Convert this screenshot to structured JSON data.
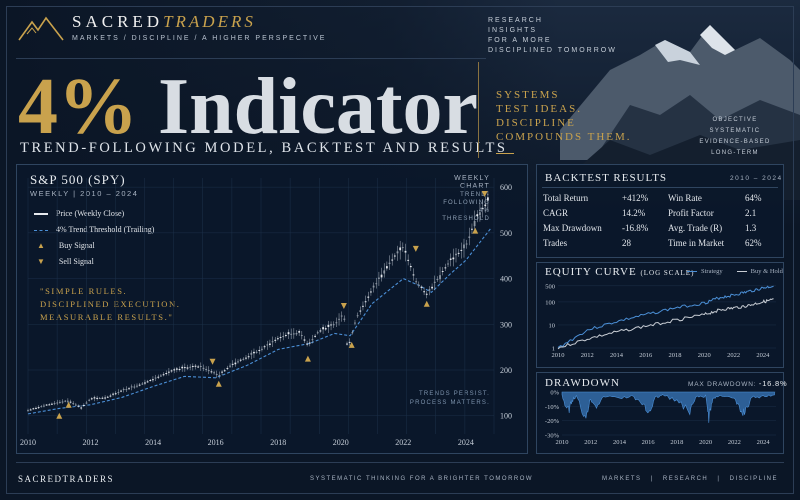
{
  "brand": {
    "name_a": "SACRED",
    "name_b": "TRADERS",
    "tagline": "MARKETS  /  DISCIPLINE  /  A HIGHER PERSPECTIVE"
  },
  "research": [
    "RESEARCH",
    "INSIGHTS",
    "FOR A MORE",
    "DISCIPLINED TOMORROW"
  ],
  "hero": {
    "pct": "4%",
    "word": "Indicator",
    "subtitle": "TREND-FOLLOWING MODEL, BACKTEST AND RESULTS"
  },
  "systems": [
    "SYSTEMS",
    "TEST IDEAS.",
    "DISCIPLINE",
    "COMPOUNDS THEM."
  ],
  "objective": [
    "OBJECTIVE",
    "SYSTEMATIC",
    "EVIDENCE-BASED",
    "LONG-TERM"
  ],
  "main_panel": {
    "title": "S&P 500 (SPY)",
    "subtitle": "WEEKLY  |  2010 – 2024",
    "legend": [
      "Price (Weekly Close)",
      "4% Trend Threshold (Trailing)",
      "Buy Signal",
      "Sell Signal"
    ],
    "quote": [
      "\"SIMPLE RULES.",
      "DISCIPLINED EXECUTION.",
      "MEASURABLE RESULTS.\""
    ],
    "chart_note": [
      "WEEKLY CHART",
      "TREND-FOLLOWING",
      "4% THRESHOLD"
    ],
    "footnote": [
      "TRENDS PERSIST.",
      "PROCESS MATTERS."
    ]
  },
  "backtest": {
    "title": "BACKTEST RESULTS",
    "range": "2010 – 2024",
    "left": [
      [
        "Total Return",
        "+412%"
      ],
      [
        "CAGR",
        "14.2%"
      ],
      [
        "Max Drawdown",
        "-16.8%"
      ],
      [
        "Trades",
        "28"
      ]
    ],
    "right": [
      [
        "Win Rate",
        "64%"
      ],
      [
        "Profit Factor",
        "2.1"
      ],
      [
        "Avg. Trade (R)",
        "1.3"
      ],
      [
        "Time in Market",
        "62%"
      ]
    ]
  },
  "equity": {
    "title": "EQUITY CURVE",
    "sub": "(LOG SCALE)",
    "legend": [
      "Strategy",
      "Buy & Hold"
    ]
  },
  "drawdown": {
    "title": "DRAWDOWN",
    "max_label": "MAX DRAWDOWN:",
    "max_value": "-16.8%"
  },
  "footer": {
    "brand": "SACREDTRADERS",
    "tagline": "SYSTEMATIC THINKING FOR A BRIGHTER TOMORROW",
    "nav": [
      "MARKETS",
      "|",
      "RESEARCH",
      "|",
      "DISCIPLINE"
    ]
  },
  "colors": {
    "gold": "#c9a24d",
    "blue": "#4b8fd6",
    "price": "#e6e9ee",
    "bg": "#0b1626"
  },
  "chart_data": [
    {
      "type": "line",
      "title": "S&P 500 (SPY)",
      "series": [
        {
          "name": "Price (Weekly Close)",
          "x": [
            2010,
            2010.5,
            2011,
            2011.3,
            2011.7,
            2012,
            2012.5,
            2013,
            2013.5,
            2014,
            2014.5,
            2015,
            2015.5,
            2015.9,
            2016.1,
            2016.5,
            2017,
            2017.5,
            2018,
            2018.3,
            2018.7,
            2018.95,
            2019.3,
            2019.8,
            2020.1,
            2020.22,
            2020.5,
            2021,
            2021.5,
            2022,
            2022.4,
            2022.75,
            2023,
            2023.5,
            2024,
            2024.3,
            2024.6,
            2024.8
          ],
          "values": [
            112,
            122,
            130,
            133,
            118,
            137,
            140,
            155,
            166,
            180,
            196,
            205,
            208,
            196,
            188,
            212,
            228,
            247,
            270,
            278,
            282,
            255,
            285,
            300,
            322,
            245,
            315,
            375,
            430,
            470,
            395,
            365,
            390,
            440,
            470,
            530,
            560,
            580
          ]
        },
        {
          "name": "4% Trend Threshold (Trailing)",
          "x": [
            2010,
            2011,
            2012,
            2013,
            2014,
            2015,
            2016,
            2017,
            2018,
            2019,
            2019.8,
            2020.3,
            2021,
            2022,
            2022.5,
            2022.9,
            2023.5,
            2024,
            2024.8
          ],
          "values": [
            104,
            116,
            124,
            140,
            164,
            186,
            183,
            210,
            245,
            258,
            280,
            275,
            345,
            400,
            385,
            370,
            410,
            440,
            510
          ]
        }
      ],
      "buy_signals": [
        [
          2011,
          100
        ],
        [
          2011.3,
          124
        ],
        [
          2016.1,
          170
        ],
        [
          2018.95,
          225
        ],
        [
          2020.35,
          255
        ],
        [
          2022.75,
          345
        ],
        [
          2024.3,
          505
        ]
      ],
      "sell_signals": [
        [
          2015.9,
          218
        ],
        [
          2020.1,
          340
        ],
        [
          2022.4,
          465
        ],
        [
          2024.6,
          585
        ]
      ],
      "yticks": [
        100,
        200,
        300,
        400,
        500,
        600
      ],
      "xticks": [
        2010,
        2012,
        2014,
        2016,
        2018,
        2020,
        2022,
        2024
      ],
      "ylim": [
        60,
        620
      ],
      "xlim": [
        2010,
        2024.9
      ]
    },
    {
      "type": "line",
      "title": "EQUITY CURVE",
      "yscale": "log",
      "series": [
        {
          "name": "Strategy",
          "x": [
            2010,
            2012,
            2014,
            2016,
            2018,
            2020,
            2021,
            2022,
            2023,
            2024,
            2024.8
          ],
          "values": [
            1,
            6,
            14,
            28,
            55,
            90,
            150,
            200,
            280,
            400,
            500
          ]
        },
        {
          "name": "Buy & Hold",
          "x": [
            2010,
            2012,
            2014,
            2016,
            2018,
            2020,
            2021,
            2022,
            2023,
            2024,
            2024.8
          ],
          "values": [
            1,
            2.5,
            5,
            9,
            16,
            28,
            45,
            55,
            70,
            100,
            130
          ]
        }
      ],
      "yticks": [
        1,
        10,
        100,
        500
      ],
      "xticks": [
        2010,
        2012,
        2014,
        2016,
        2018,
        2020,
        2022,
        2024
      ],
      "xlim": [
        2010,
        2024.9
      ]
    },
    {
      "type": "area",
      "title": "DRAWDOWN",
      "series": [
        {
          "name": "Drawdown",
          "x": [
            2010,
            2010.4,
            2010.7,
            2011,
            2011.6,
            2012,
            2012.4,
            2013,
            2014,
            2015,
            2015.7,
            2016.1,
            2016.5,
            2017,
            2018,
            2018.9,
            2019.3,
            2020,
            2020.22,
            2020.5,
            2021,
            2022,
            2022.5,
            2022.8,
            2023.2,
            2024,
            2024.8
          ],
          "values": [
            -2,
            -14,
            -6,
            -3,
            -16.8,
            -5,
            -9,
            -3,
            -4,
            -3,
            -11,
            -13,
            -4,
            -2,
            -6,
            -15,
            -4,
            -3,
            -16.8,
            -5,
            -2,
            -5,
            -15,
            -12,
            -4,
            -3,
            -2
          ]
        }
      ],
      "yticks": [
        0,
        -10,
        -20,
        -30
      ],
      "xticks": [
        2010,
        2012,
        2014,
        2016,
        2018,
        2020,
        2022,
        2024
      ],
      "ylim": [
        -30,
        0
      ]
    }
  ]
}
